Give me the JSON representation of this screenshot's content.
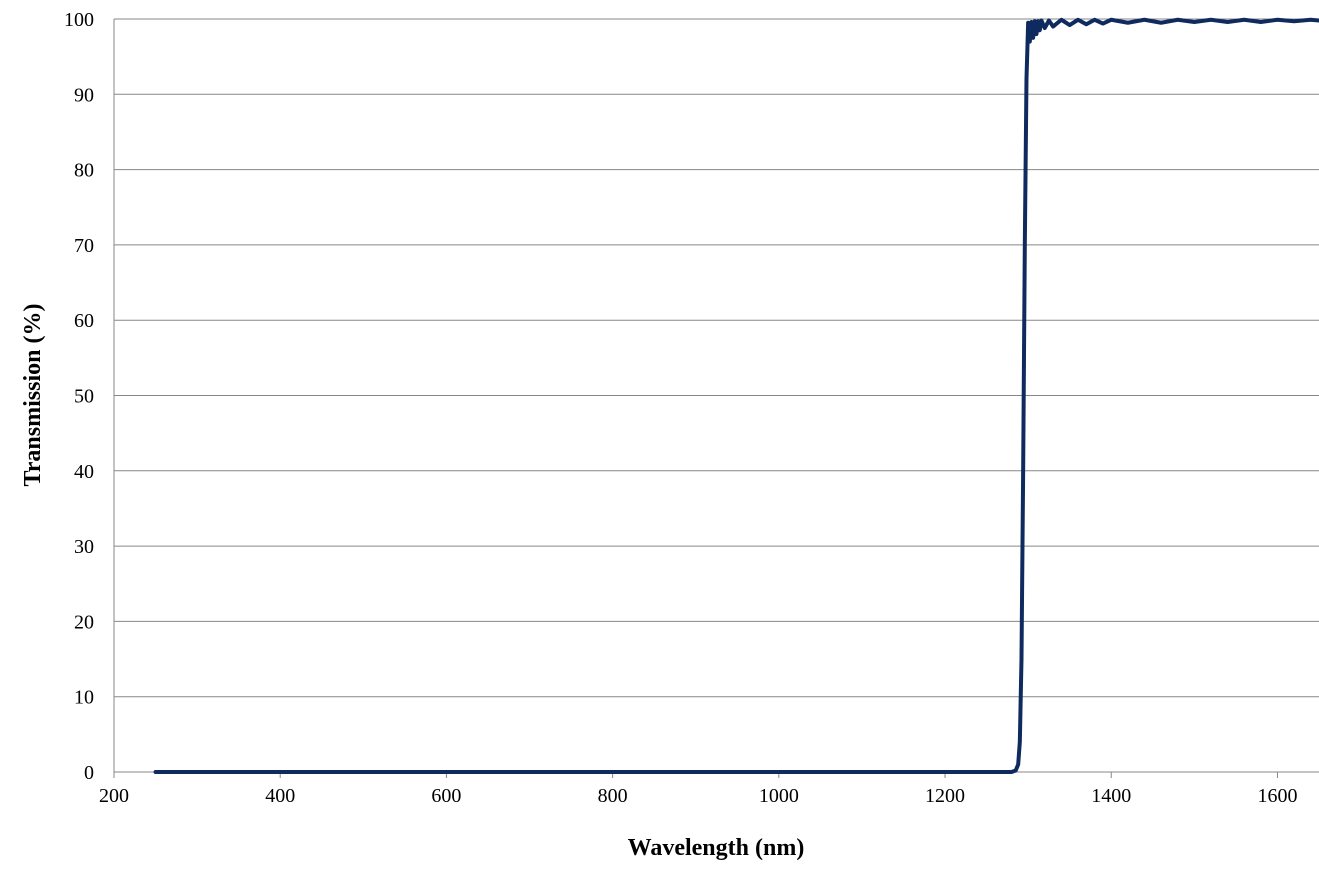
{
  "chart_data": {
    "type": "line",
    "title": "",
    "xlabel": "Wavelength (nm)",
    "ylabel": "Transmission (%)",
    "xlim": [
      200,
      1650
    ],
    "ylim": [
      0,
      100
    ],
    "x_ticks": [
      200,
      400,
      600,
      800,
      1000,
      1200,
      1400,
      1600
    ],
    "y_ticks": [
      0,
      10,
      20,
      30,
      40,
      50,
      60,
      70,
      80,
      90,
      100
    ],
    "grid": "horizontal",
    "legend": "none",
    "line_color": "#0f2a5f",
    "series": [
      {
        "x": [
          250,
          400,
          600,
          800,
          1000,
          1200,
          1280,
          1285,
          1288,
          1290,
          1292,
          1294,
          1296,
          1298,
          1300,
          1302,
          1304,
          1306,
          1308,
          1310,
          1312,
          1314,
          1316,
          1320,
          1325,
          1330,
          1340,
          1350,
          1360,
          1370,
          1380,
          1390,
          1400,
          1420,
          1440,
          1460,
          1480,
          1500,
          1520,
          1540,
          1560,
          1580,
          1600,
          1620,
          1640,
          1650
        ],
        "y": [
          0,
          0,
          0,
          0,
          0,
          0,
          0,
          0.2,
          1,
          4,
          15,
          40,
          70,
          92,
          99.5,
          97,
          99.6,
          97.5,
          99.7,
          98,
          99.7,
          98.5,
          99.8,
          98.8,
          99.8,
          99,
          99.9,
          99.2,
          99.9,
          99.3,
          99.9,
          99.4,
          99.9,
          99.5,
          99.9,
          99.5,
          99.9,
          99.6,
          99.9,
          99.6,
          99.9,
          99.6,
          99.9,
          99.7,
          99.9,
          99.8
        ]
      }
    ]
  }
}
